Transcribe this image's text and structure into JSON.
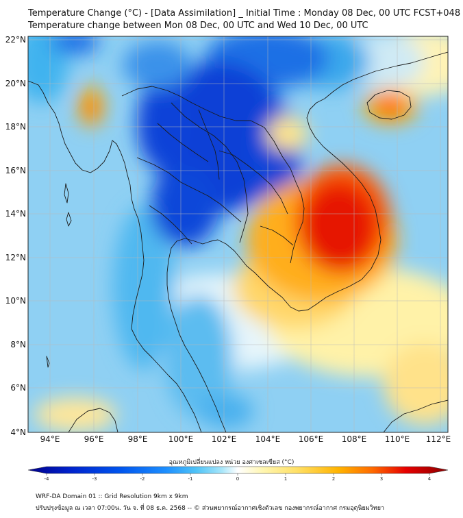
{
  "header": {
    "title_line1": "Temperature Change (°C) - [Data Assimilation] _ Initial Time : Monday 08 Dec, 00 UTC FCST+048",
    "title_line2": "Temperature change between Mon 08 Dec, 00 UTC and Wed 10 Dec, 00 UTC"
  },
  "map": {
    "lat_ticks": [
      "22°N",
      "20°N",
      "18°N",
      "16°N",
      "14°N",
      "12°N",
      "10°N",
      "8°N",
      "6°N",
      "4°N"
    ],
    "lon_ticks": [
      "94°E",
      "96°E",
      "98°E",
      "100°E",
      "102°E",
      "104°E",
      "106°E",
      "108°E",
      "110°E",
      "112°E"
    ]
  },
  "colorbar": {
    "label": "อุณหภูมิเปลี่ยนแปลง หน่วย องศาเซลเซียส (°C)",
    "ticks": [
      "-4",
      "-3",
      "-2",
      "-1",
      "0",
      "1",
      "2",
      "3",
      "4"
    ],
    "colors": [
      "#00008b",
      "#0022cc",
      "#0055ee",
      "#1e90ff",
      "#4fc3f7",
      "#a5e5fa",
      "#ffffff",
      "#fff6b0",
      "#ffe066",
      "#ffb300",
      "#ff6a00",
      "#e60000",
      "#8b0000"
    ]
  },
  "footer": {
    "line1": "WRF-DA Domain 01 :: Grid Resolution 9km x 9km",
    "line2": "ปรับปรุงข้อมูล ณ เวลา 07:00น. วัน จ. ที่ 08 ธ.ค. 2568 -- © ส่วนพยากรณ์อากาศเชิงตัวเลข กองพยากรณ์อากาศ กรมอุตุนิยมวิทยา"
  }
}
